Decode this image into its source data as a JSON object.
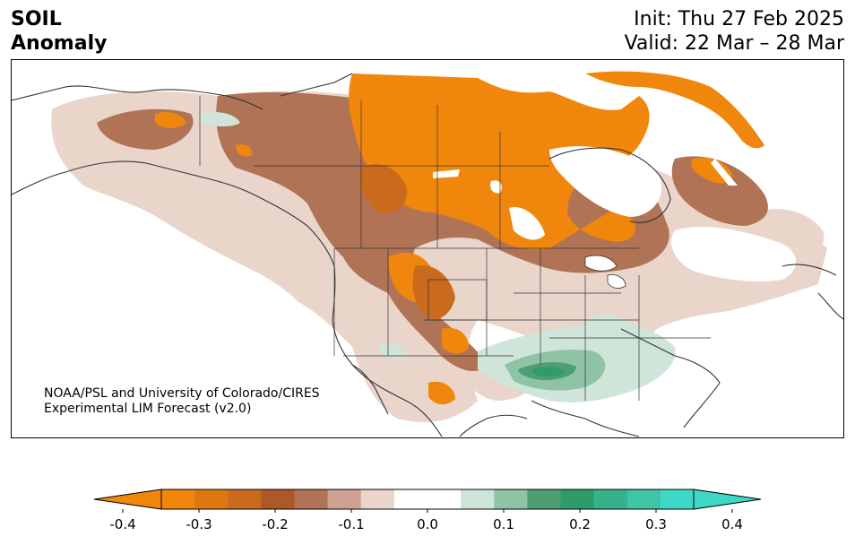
{
  "title": {
    "line1": "SOIL",
    "line2": "Anomaly"
  },
  "timing": {
    "init": "Init: Thu 27 Feb 2025",
    "valid": "Valid: 22 Mar – 28 Mar"
  },
  "credit": {
    "line1": "NOAA/PSL and University of Colorado/CIRES",
    "line2": "Experimental LIM Forecast (v2.0)"
  },
  "colorbar": {
    "ticks": [
      "-0.4",
      "-0.3",
      "-0.2",
      "-0.1",
      "0.0",
      "0.1",
      "0.2",
      "0.3",
      "0.4"
    ],
    "colors": [
      "#f0870c",
      "#dc780f",
      "#c96a1c",
      "#ad5828",
      "#b07356",
      "#cfa190",
      "#ead5cb",
      "#ffffff",
      "#ffffff",
      "#cfe5da",
      "#8fc3a6",
      "#4e9e73",
      "#2f9a6a",
      "#37b08c",
      "#3fc4a6",
      "#3fd8c6"
    ],
    "under_color": "#f0870c",
    "over_color": "#3fd8c6"
  }
}
